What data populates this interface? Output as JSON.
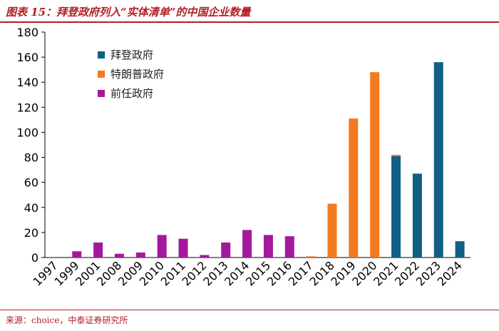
{
  "header": {
    "title": "图表 15：拜登政府列入“实体清单”的中国企业数量"
  },
  "footer": {
    "source": "来源：choice，中泰证券研究所"
  },
  "colors": {
    "title_red": "#b11f24",
    "biden": "#0f6183",
    "trump": "#f47a20",
    "previous": "#a4189e"
  },
  "chart_data": {
    "type": "bar",
    "categories": [
      "1997",
      "1999",
      "2001",
      "2008",
      "2009",
      "2010",
      "2011",
      "2012",
      "2013",
      "2014",
      "2015",
      "2016",
      "2017",
      "2018",
      "2019",
      "2020",
      "2021",
      "2022",
      "2023",
      "2024"
    ],
    "series": [
      {
        "name": "拜登政府",
        "color": "#0f6183",
        "values": [
          0,
          0,
          0,
          0,
          0,
          0,
          0,
          0,
          0,
          0,
          0,
          0,
          0,
          0,
          0,
          0,
          81,
          67,
          156,
          13
        ]
      },
      {
        "name": "特朗普政府",
        "color": "#f47a20",
        "values": [
          0,
          0,
          0,
          0,
          0,
          0,
          0,
          0,
          0,
          0,
          0,
          0,
          1,
          43,
          111,
          148,
          1,
          0,
          0,
          0
        ]
      },
      {
        "name": "前任政府",
        "color": "#a4189e",
        "values": [
          0,
          5,
          12,
          3,
          4,
          18,
          15,
          2,
          12,
          22,
          18,
          17,
          0,
          0,
          0,
          0,
          0,
          0,
          0,
          0
        ]
      }
    ],
    "stacked": true,
    "ylim": [
      0,
      180
    ],
    "yticks": [
      0,
      20,
      40,
      60,
      80,
      100,
      120,
      140,
      160,
      180
    ],
    "xlabel": "",
    "ylabel": "",
    "grid": false,
    "legend_position": "top-left"
  }
}
